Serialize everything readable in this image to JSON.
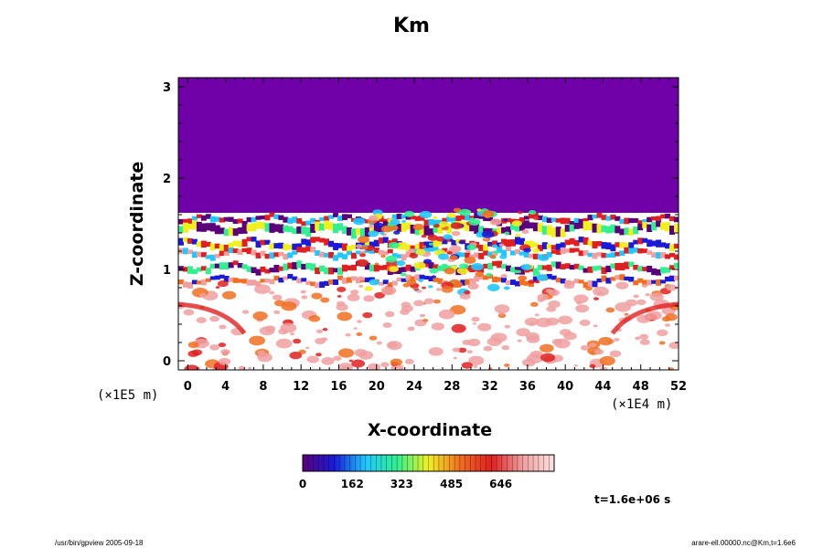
{
  "chart_data": {
    "type": "heatmap",
    "title": "Km",
    "xlabel": "X-coordinate",
    "ylabel": "Z-coordinate",
    "x_scale_note": "(×1E4 m)",
    "y_scale_note": "(×1E5 m)",
    "xlim": [
      -1,
      52
    ],
    "ylim": [
      -0.1,
      3.1
    ],
    "x_ticks": [
      0,
      4,
      8,
      12,
      16,
      20,
      24,
      28,
      32,
      36,
      40,
      44,
      48,
      52
    ],
    "y_ticks": [
      0,
      1,
      2,
      3
    ],
    "colorbar": {
      "range": [
        0,
        820
      ],
      "ticks": [
        0,
        162,
        323,
        485,
        646
      ],
      "colors": [
        "#5a007a",
        "#1a1ad8",
        "#20c8ff",
        "#30f090",
        "#f0f020",
        "#f07020",
        "#e02020",
        "#f0a0a0",
        "#fbe0e0"
      ]
    },
    "background_color": "#7000a8",
    "time_label": "t=1.6e+06 s"
  },
  "footer": {
    "command": "/usr/bin/gpview 2005-09-18",
    "version": "arare-ell.00000.nc@Km,t=1.6e6"
  }
}
